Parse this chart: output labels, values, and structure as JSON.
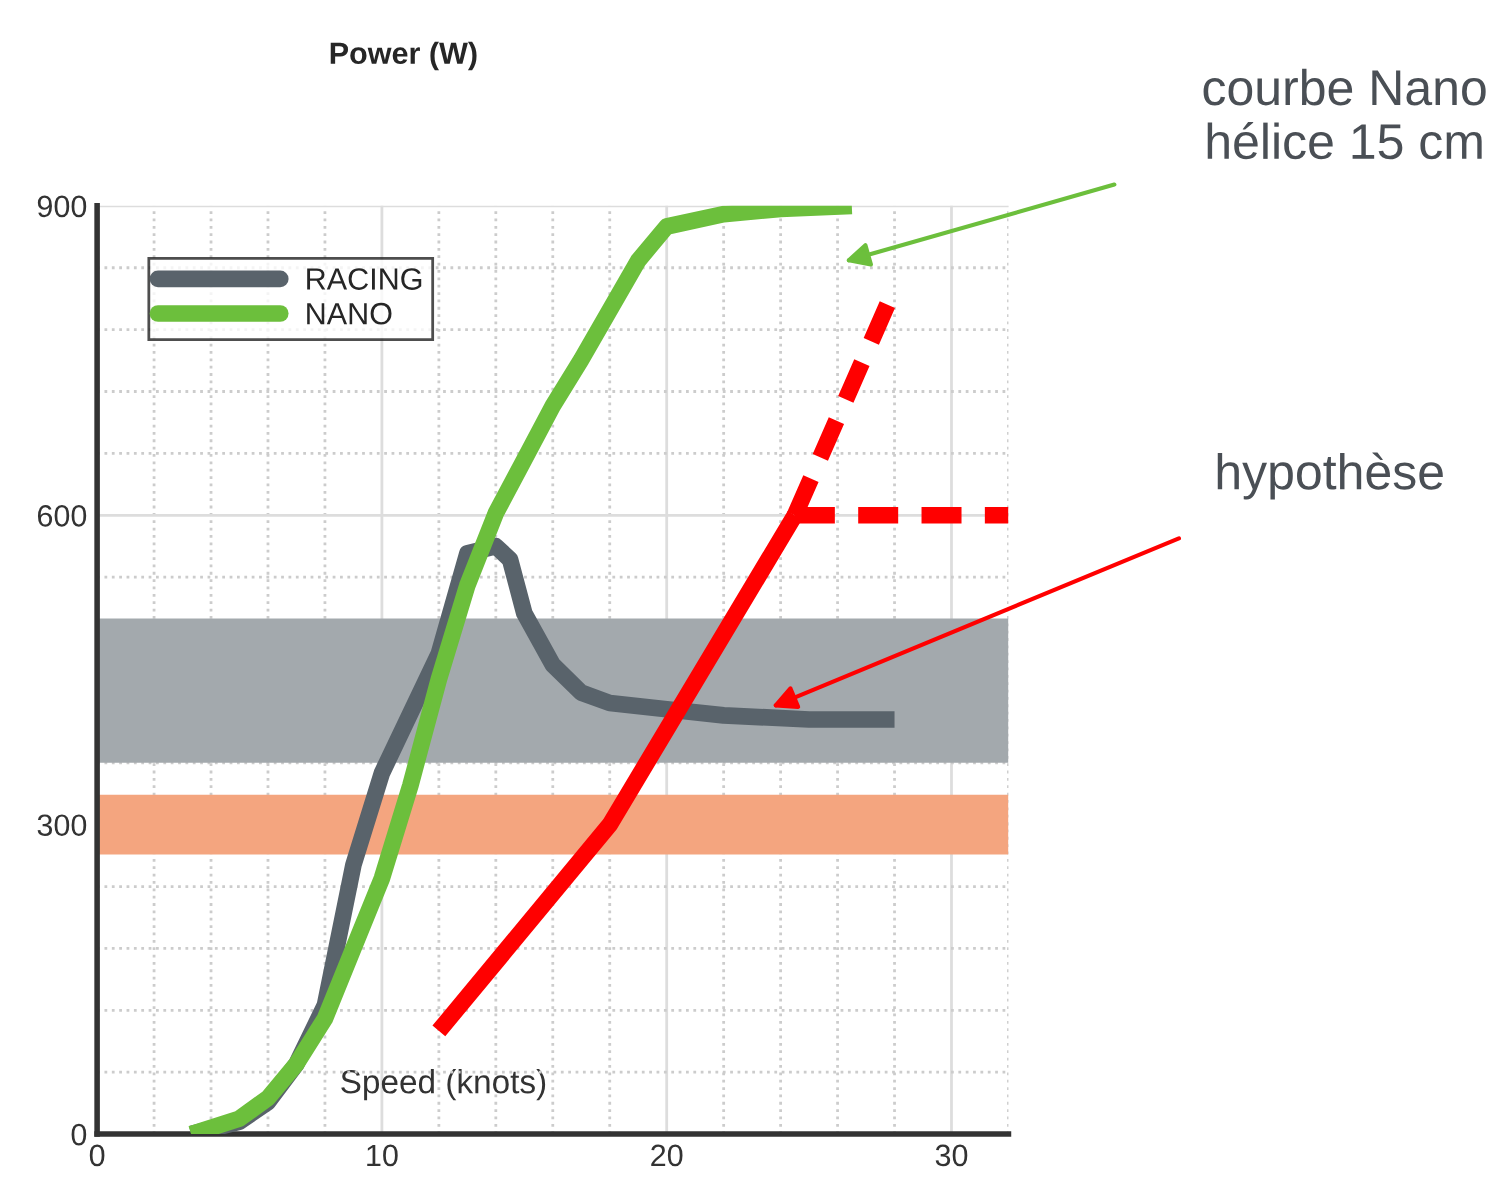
{
  "chart_data": {
    "type": "line",
    "title": "Power (W)",
    "xlabel": "Speed (knots)",
    "xlim": [
      0,
      32
    ],
    "ylim": [
      0,
      900
    ],
    "xticks": [
      0,
      10,
      20,
      30
    ],
    "yticks": [
      0,
      300,
      600,
      900
    ],
    "grid": true,
    "legend": "top left",
    "line_style": "solid",
    "marker": "none",
    "series": [
      {
        "name": "RACING",
        "color": "#59636b",
        "x": [
          3.3,
          5,
          6,
          7,
          8,
          9,
          10,
          11,
          12,
          13,
          14,
          14.5,
          15,
          16,
          17,
          18,
          20,
          22,
          25,
          28
        ],
        "values": [
          0,
          12,
          31,
          68,
          125,
          261,
          350,
          408,
          466,
          563,
          570,
          557,
          505,
          455,
          428,
          418,
          412,
          406,
          402,
          402
        ]
      },
      {
        "name": "NANO",
        "color": "#6cbf3c",
        "x": [
          3.3,
          5,
          6,
          7,
          8,
          9,
          10,
          11,
          12,
          13,
          14,
          15,
          16,
          17,
          18,
          19,
          20,
          22,
          24,
          26.5
        ],
        "values": [
          0,
          15,
          35,
          68,
          112,
          180,
          248,
          338,
          441,
          532,
          602,
          654,
          706,
          751,
          799,
          847,
          880,
          892,
          897,
          900
        ]
      },
      {
        "color": "#ff0000",
        "x": [
          12,
          18,
          24.5
        ],
        "values": [
          100,
          300,
          600
        ]
      },
      {
        "color": "#ff0000",
        "line_style": "dashed",
        "x": [
          24.5,
          32
        ],
        "values": [
          600,
          600
        ]
      },
      {
        "color": "#ff0000",
        "line_style": "dashed",
        "x": [
          24.5,
          28
        ],
        "values": [
          600,
          820
        ]
      }
    ],
    "bands": [
      {
        "axis": "y",
        "from": 360,
        "to": 500,
        "color": "#a3a9ad"
      },
      {
        "axis": "y",
        "from": 271,
        "to": 329,
        "color": "#f4a57f"
      }
    ],
    "annotations": [
      "courbe Nano\nhélice 15 cm",
      "hypothèse"
    ]
  }
}
